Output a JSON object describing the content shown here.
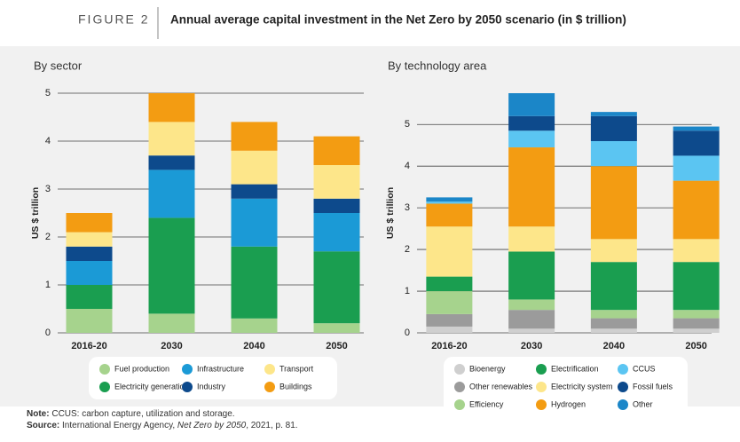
{
  "header": {
    "figure": "FIGURE 2",
    "title": "Annual average capital investment in the Net Zero by 2050 scenario (in $ trillion)"
  },
  "chart_data": [
    {
      "type": "bar",
      "stacked": true,
      "subtitle": "By sector",
      "y_label": "US $ trillion",
      "categories": [
        "2016-20",
        "2030",
        "2040",
        "2050"
      ],
      "series": [
        {
          "name": "Fuel production",
          "color": "#a6d38d",
          "values": [
            0.5,
            0.4,
            0.3,
            0.2
          ]
        },
        {
          "name": "Electricity generation",
          "color": "#1a9e50",
          "values": [
            0.5,
            2.0,
            1.5,
            1.5
          ]
        },
        {
          "name": "Infrastructure",
          "color": "#1b9ad6",
          "values": [
            0.5,
            1.0,
            1.0,
            0.8
          ]
        },
        {
          "name": "Industry",
          "color": "#0d4a8c",
          "values": [
            0.3,
            0.3,
            0.3,
            0.3
          ]
        },
        {
          "name": "Transport",
          "color": "#fde68a",
          "values": [
            0.3,
            0.7,
            0.7,
            0.7
          ]
        },
        {
          "name": "Buildings",
          "color": "#f39c12",
          "values": [
            0.4,
            0.6,
            0.6,
            0.6
          ]
        }
      ],
      "ylim": [
        0,
        5
      ],
      "yticks": [
        0,
        1,
        2,
        3,
        4,
        5
      ],
      "grid": true
    },
    {
      "type": "bar",
      "stacked": true,
      "subtitle": "By technology area",
      "y_label": "US $ trillion",
      "categories": [
        "2016-20",
        "2030",
        "2040",
        "2050"
      ],
      "series": [
        {
          "name": "Bioenergy",
          "color": "#cfcfcf",
          "values": [
            0.15,
            0.1,
            0.1,
            0.1
          ]
        },
        {
          "name": "Other renewables",
          "color": "#9b9b9b",
          "values": [
            0.3,
            0.45,
            0.25,
            0.25
          ]
        },
        {
          "name": "Efficiency",
          "color": "#a6d38d",
          "values": [
            0.55,
            0.25,
            0.2,
            0.2
          ]
        },
        {
          "name": "Electrification",
          "color": "#1a9e50",
          "values": [
            0.35,
            1.15,
            1.15,
            1.15
          ]
        },
        {
          "name": "Electricity system",
          "color": "#fde68a",
          "values": [
            1.2,
            0.6,
            0.55,
            0.55
          ]
        },
        {
          "name": "Hydrogen",
          "color": "#f39c12",
          "values": [
            0.55,
            1.9,
            1.75,
            1.4
          ]
        },
        {
          "name": "CCUS",
          "color": "#5bc5f2",
          "values": [
            0.05,
            0.4,
            0.6,
            0.6
          ]
        },
        {
          "name": "Fossil fuels",
          "color": "#0d4a8c",
          "values": [
            0,
            0.35,
            0.6,
            0.6
          ]
        },
        {
          "name": "Other",
          "color": "#1b86c8",
          "values": [
            0.1,
            0.55,
            0.1,
            0.1
          ]
        }
      ],
      "ylim": [
        0,
        5.75
      ],
      "yticks": [
        0,
        1,
        2,
        3,
        4,
        5
      ],
      "grid": true
    }
  ],
  "notes": {
    "note_label": "Note:",
    "note_text": " CCUS: carbon capture, utilization and storage.",
    "source_label": "Source:",
    "source_text": " International Energy Agency, ",
    "source_title": "Net Zero by 2050",
    "source_rest": ", 2021, p. 81."
  }
}
